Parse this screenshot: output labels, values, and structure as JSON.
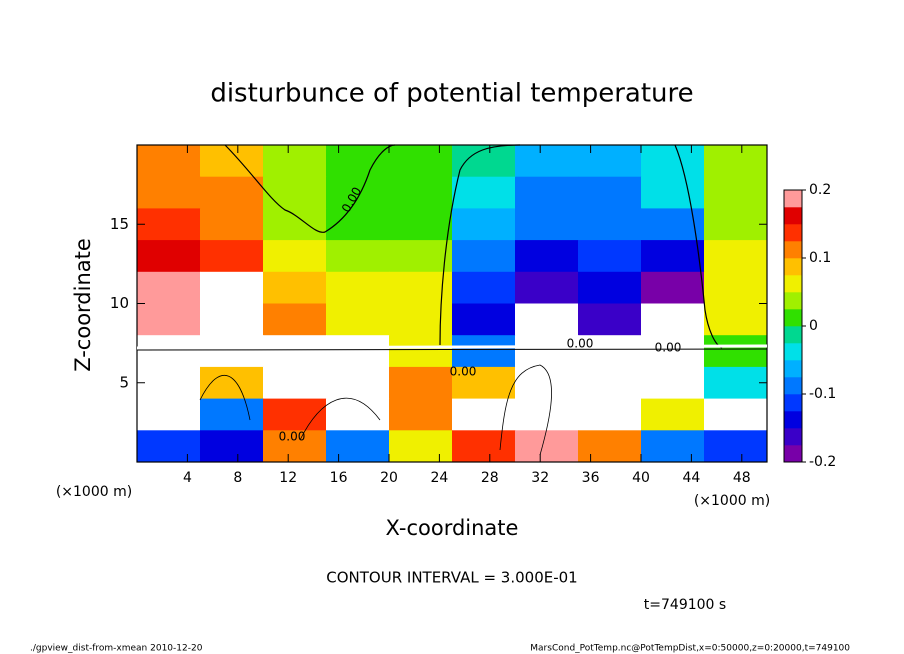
{
  "chart_data": {
    "type": "heatmap",
    "title": "disturbunce of potential temperature",
    "x_label": "X-coordinate",
    "y_label": "Z-coordinate",
    "x_unit_label": "(×1000 m)",
    "x_unit_label_right": "(×1000 m)",
    "xlim": [
      0,
      50
    ],
    "ylim": [
      0,
      20
    ],
    "xticks": [
      4,
      8,
      12,
      16,
      20,
      24,
      28,
      32,
      36,
      40,
      44,
      48
    ],
    "yticks": [
      5,
      10,
      15
    ],
    "clim": [
      -0.2,
      0.2
    ],
    "cticks": [
      -0.2,
      -0.1,
      0,
      0.1,
      0.2
    ],
    "palette": [
      "#7800a8",
      "#3a00c8",
      "#0000e0",
      "#0038ff",
      "#0078ff",
      "#00b0ff",
      "#00e0e8",
      "#00d890",
      "#30e000",
      "#a0f000",
      "#f0f000",
      "#ffc000",
      "#ff8000",
      "#ff3000",
      "#e00000",
      "#ff9a9a"
    ],
    "out_of_range_color": "#ffffff",
    "values": [
      [
        0.1,
        0.08,
        0.03,
        0.02,
        0,
        -0.02,
        -0.06,
        -0.06,
        -0.03,
        0.03
      ],
      [
        0.12,
        0.1,
        0.03,
        0.01,
        0,
        -0.05,
        -0.08,
        -0.08,
        -0.05,
        0.03
      ],
      [
        0.14,
        0.12,
        0.04,
        0.0,
        0.02,
        -0.07,
        -0.1,
        -0.1,
        -0.08,
        0.04
      ],
      [
        0.16,
        0.15,
        0.06,
        0.03,
        0.04,
        -0.1,
        -0.14,
        -0.12,
        -0.13,
        0.05
      ],
      [
        0.18,
        0.22,
        0.08,
        0.05,
        0.05,
        -0.12,
        -0.17,
        -0.14,
        -0.2,
        0.06
      ],
      [
        0.2,
        0.25,
        0.1,
        0.07,
        0.06,
        -0.15,
        -0.22,
        -0.16,
        -0.25,
        0.07
      ],
      [
        0.3,
        0.3,
        -0.25,
        0.3,
        0.05,
        -0.1,
        0.3,
        0.3,
        -0.3,
        0.02
      ],
      [
        0.3,
        0.08,
        0.3,
        0.3,
        0.1,
        0.08,
        0.3,
        -0.3,
        0.3,
        -0.05
      ],
      [
        0.3,
        -0.1,
        0.15,
        0.3,
        0.12,
        0.25,
        0.3,
        0.3,
        0.05,
        0.3
      ],
      [
        -0.12,
        -0.15,
        0.1,
        -0.08,
        0.05,
        0.15,
        0.2,
        0.1,
        -0.1,
        -0.12
      ]
    ],
    "contour_labels": [
      "0.00",
      "0.00",
      "0.00",
      "0.00",
      "0.00"
    ],
    "contour_interval": "CONTOUR INTERVAL = 3.000E-01",
    "time_label": "t=749100 s",
    "footer_left": "./gpview_dist-from-xmean  2010-12-20",
    "footer_right": "MarsCond_PotTemp.nc@PotTempDist,x=0:50000,z=0:20000,t=749100"
  }
}
